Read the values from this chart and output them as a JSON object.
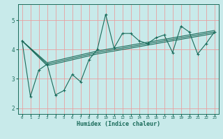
{
  "xlabel": "Humidex (Indice chaleur)",
  "bg_color": "#c8eaea",
  "line_color": "#1a6b5a",
  "grid_color": "#e8a0a0",
  "xlim": [
    -0.5,
    23.5
  ],
  "ylim": [
    1.8,
    5.55
  ],
  "xticks": [
    0,
    1,
    2,
    3,
    4,
    5,
    6,
    7,
    8,
    9,
    10,
    11,
    12,
    13,
    14,
    15,
    16,
    17,
    18,
    19,
    20,
    21,
    22,
    23
  ],
  "yticks": [
    2,
    3,
    4,
    5
  ],
  "main_x": [
    0,
    1,
    2,
    3,
    4,
    5,
    6,
    7,
    8,
    9,
    10,
    11,
    12,
    13,
    14,
    15,
    16,
    17,
    18,
    19,
    20,
    21,
    22,
    23
  ],
  "main_y": [
    4.3,
    2.4,
    3.3,
    3.5,
    2.45,
    2.6,
    3.15,
    2.9,
    3.65,
    4.0,
    5.2,
    4.05,
    4.55,
    4.55,
    4.3,
    4.2,
    4.4,
    4.5,
    3.9,
    4.8,
    4.6,
    3.85,
    4.2,
    4.6
  ],
  "line1_x": [
    0,
    3,
    9,
    23
  ],
  "line1_y": [
    4.3,
    3.45,
    3.85,
    4.55
  ],
  "line2_x": [
    0,
    3,
    9,
    23
  ],
  "line2_y": [
    4.3,
    3.5,
    3.9,
    4.6
  ],
  "line3_x": [
    0,
    3,
    9,
    23
  ],
  "line3_y": [
    4.3,
    3.55,
    3.95,
    4.65
  ]
}
